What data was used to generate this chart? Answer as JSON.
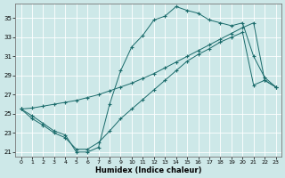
{
  "xlabel": "Humidex (Indice chaleur)",
  "background_color": "#cde8e8",
  "line_color": "#1a6b6b",
  "grid_color": "#b8d8d8",
  "xlim": [
    -0.5,
    23.5
  ],
  "ylim": [
    20.5,
    36.5
  ],
  "yticks": [
    21,
    23,
    25,
    27,
    29,
    31,
    33,
    35
  ],
  "xticks": [
    0,
    1,
    2,
    3,
    4,
    5,
    6,
    7,
    8,
    9,
    10,
    11,
    12,
    13,
    14,
    15,
    16,
    17,
    18,
    19,
    20,
    21,
    22,
    23
  ],
  "curves": [
    {
      "x": [
        0,
        1,
        2,
        3,
        4,
        5,
        6,
        7,
        8,
        9,
        10,
        11,
        12,
        13,
        14,
        15,
        16,
        17,
        18,
        19,
        20,
        21,
        22,
        23
      ],
      "y": [
        25.5,
        24.8,
        24.0,
        23.2,
        22.8,
        21.0,
        21.0,
        21.5,
        26.0,
        29.5,
        32.0,
        33.2,
        34.8,
        35.2,
        36.2,
        35.8,
        35.5,
        34.8,
        34.5,
        34.2,
        34.5,
        31.0,
        28.8,
        27.8
      ]
    },
    {
      "x": [
        0,
        1,
        2,
        3,
        4,
        5,
        6,
        7,
        8,
        9,
        10,
        11,
        12,
        13,
        14,
        15,
        16,
        17,
        18,
        19,
        20,
        21,
        22,
        23
      ],
      "y": [
        25.5,
        25.6,
        25.8,
        26.0,
        26.2,
        26.4,
        26.7,
        27.0,
        27.4,
        27.8,
        28.2,
        28.7,
        29.2,
        29.8,
        30.4,
        31.0,
        31.6,
        32.2,
        32.8,
        33.4,
        34.0,
        34.5,
        28.5,
        27.8
      ]
    },
    {
      "x": [
        0,
        1,
        2,
        3,
        4,
        5,
        6,
        7,
        8,
        9,
        10,
        11,
        12,
        13,
        14,
        15,
        16,
        17,
        18,
        19,
        20,
        21,
        22,
        23
      ],
      "y": [
        25.5,
        24.5,
        23.8,
        23.0,
        22.5,
        21.3,
        21.3,
        22.0,
        23.2,
        24.5,
        25.5,
        26.5,
        27.5,
        28.5,
        29.5,
        30.5,
        31.2,
        31.8,
        32.5,
        33.0,
        33.5,
        28.0,
        28.5,
        27.8
      ]
    }
  ]
}
